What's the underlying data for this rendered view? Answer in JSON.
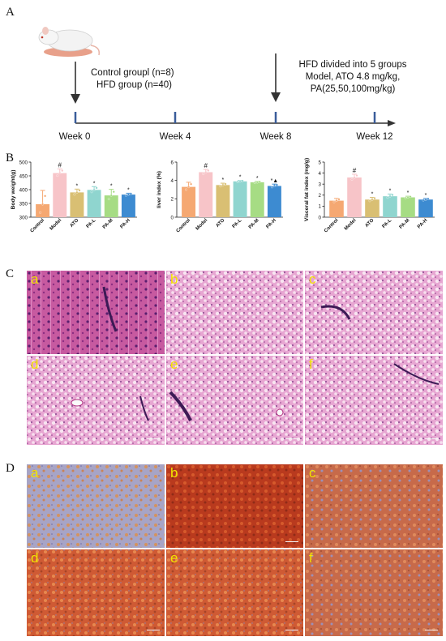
{
  "panels": {
    "A": "A",
    "B": "B",
    "C": "C",
    "D": "D"
  },
  "timeline": {
    "control_text": "Control groupl (n=8)",
    "hfd_text": "HFD group (n=40)",
    "divided_line1": "HFD divided into 5 groups",
    "divided_line2": "Model, ATO 4.8 mg/kg,",
    "divided_line3": "PA(25,50,100mg/kg)",
    "weeks": [
      "Week 0",
      "Week 4",
      "Week 8",
      "Week 12"
    ]
  },
  "colors": {
    "Control": "#f5a872",
    "Model": "#f7c4c8",
    "ATO": "#d9bf73",
    "PA-L": "#8fd5cf",
    "PA-M": "#a6dc84",
    "PA-H": "#3d8bd1",
    "he_stain": "#d05ea9",
    "oil_red": "#c84a2a",
    "tile_label": "#f2e400"
  },
  "chart_data": [
    {
      "type": "bar",
      "ylabel": "Body weight(g)",
      "categories": [
        "Control",
        "Model",
        "ATO",
        "PA-L",
        "PA-M",
        "PA-H"
      ],
      "values": [
        347,
        460,
        390,
        399,
        379,
        382
      ],
      "errors": [
        50,
        15,
        12,
        12,
        22,
        5
      ],
      "ylim": [
        300,
        500
      ],
      "yticks": [
        "300",
        "350",
        "400",
        "450",
        "500"
      ],
      "annotations": [
        "",
        "#",
        "*",
        "*",
        "*",
        "*"
      ]
    },
    {
      "type": "bar",
      "ylabel": "liver index (%)",
      "categories": [
        "Control",
        "Model",
        "ATO",
        "PA-L",
        "PA-M",
        "PA-H"
      ],
      "values": [
        3.3,
        4.9,
        3.5,
        3.9,
        3.8,
        3.4
      ],
      "errors": [
        0.5,
        0.3,
        0.2,
        0.1,
        0.1,
        0.2
      ],
      "ylim": [
        0,
        6
      ],
      "yticks": [
        "0",
        "2",
        "4",
        "6"
      ],
      "annotations": [
        "",
        "#",
        "*",
        "*",
        "*",
        "*▲"
      ]
    },
    {
      "type": "bar",
      "ylabel": "Visceral fat index (mg/g)",
      "categories": [
        "Control",
        "Model",
        "ATO",
        "PA-L",
        "PA-M",
        "PA-H"
      ],
      "values": [
        1.5,
        3.6,
        1.6,
        1.9,
        1.8,
        1.6
      ],
      "errors": [
        0.2,
        0.3,
        0.2,
        0.2,
        0.1,
        0.1
      ],
      "ylim": [
        0,
        5
      ],
      "yticks": [
        "0",
        "1",
        "2",
        "3",
        "4",
        "5"
      ],
      "annotations": [
        "",
        "#",
        "*",
        "*",
        "*",
        "*"
      ]
    }
  ],
  "micro_labels": [
    "a",
    "b",
    "c",
    "d",
    "e",
    "f"
  ]
}
